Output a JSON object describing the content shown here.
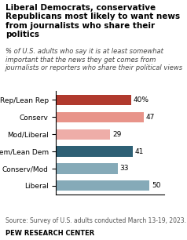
{
  "chart_data": {
    "type": "bar",
    "orientation": "horizontal",
    "title": "Liberal Democrats, conservative Republicans most likely to want news from journalists who share their politics",
    "subtitle": "% of U.S. adults who say it is at least somewhat important that the news they get comes from journalists or reporters who share their political views",
    "categories": [
      "Rep/Lean Rep",
      "Conserv",
      "Mod/Liberal",
      "Dem/Lean Dem",
      "Conserv/Mod",
      "Liberal"
    ],
    "values": [
      40,
      47,
      29,
      41,
      33,
      50
    ],
    "value_labels": [
      "40%",
      "47",
      "29",
      "41",
      "33",
      "50"
    ],
    "colors": [
      "#b03a2e",
      "#e8948a",
      "#eeada8",
      "#2e6075",
      "#85aab8",
      "#85aab8"
    ],
    "xlim": [
      0,
      58
    ],
    "xticks": [],
    "tick_labels": "y",
    "data_labels": true,
    "grid": false,
    "annotations": [
      "Source: Survey of U.S. adults conducted March 13-19, 2023.",
      "PEW RESEARCH CENTER"
    ]
  }
}
